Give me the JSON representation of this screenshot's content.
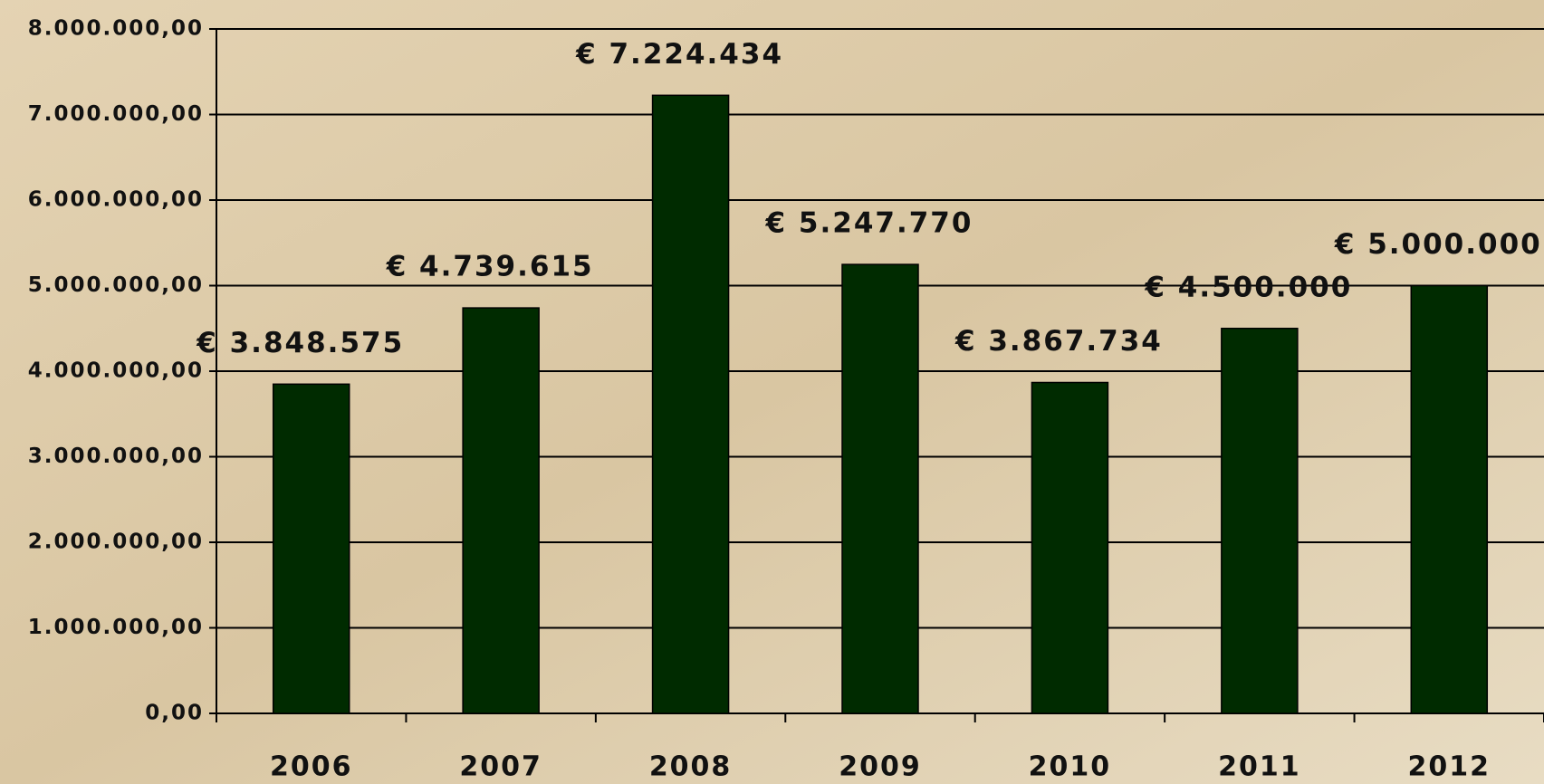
{
  "chart_data": {
    "type": "bar",
    "categories": [
      "2006",
      "2007",
      "2008",
      "2009",
      "2010",
      "2011",
      "2012"
    ],
    "values": [
      3848575,
      4739615,
      7224434,
      5247770,
      3867734,
      4500000,
      5000000
    ],
    "value_labels": [
      "€ 3.848.575",
      "€ 4.739.615",
      "€ 7.224.434",
      "€ 5.247.770",
      "€ 3.867.734",
      "€ 4.500.000",
      "€ 5.000.000"
    ],
    "color": "#002b00",
    "ylim": [
      0,
      8000000
    ],
    "yticks": [
      {
        "value": 0,
        "label": "0,00"
      },
      {
        "value": 1000000,
        "label": "1.000.000,00"
      },
      {
        "value": 2000000,
        "label": "2.000.000,00"
      },
      {
        "value": 3000000,
        "label": "3.000.000,00"
      },
      {
        "value": 4000000,
        "label": "4.000.000,00"
      },
      {
        "value": 5000000,
        "label": "5.000.000,00"
      },
      {
        "value": 6000000,
        "label": "6.000.000,00"
      },
      {
        "value": 7000000,
        "label": "7.000.000,00"
      },
      {
        "value": 8000000,
        "label": "8.000.000,00"
      }
    ],
    "grid": true
  }
}
